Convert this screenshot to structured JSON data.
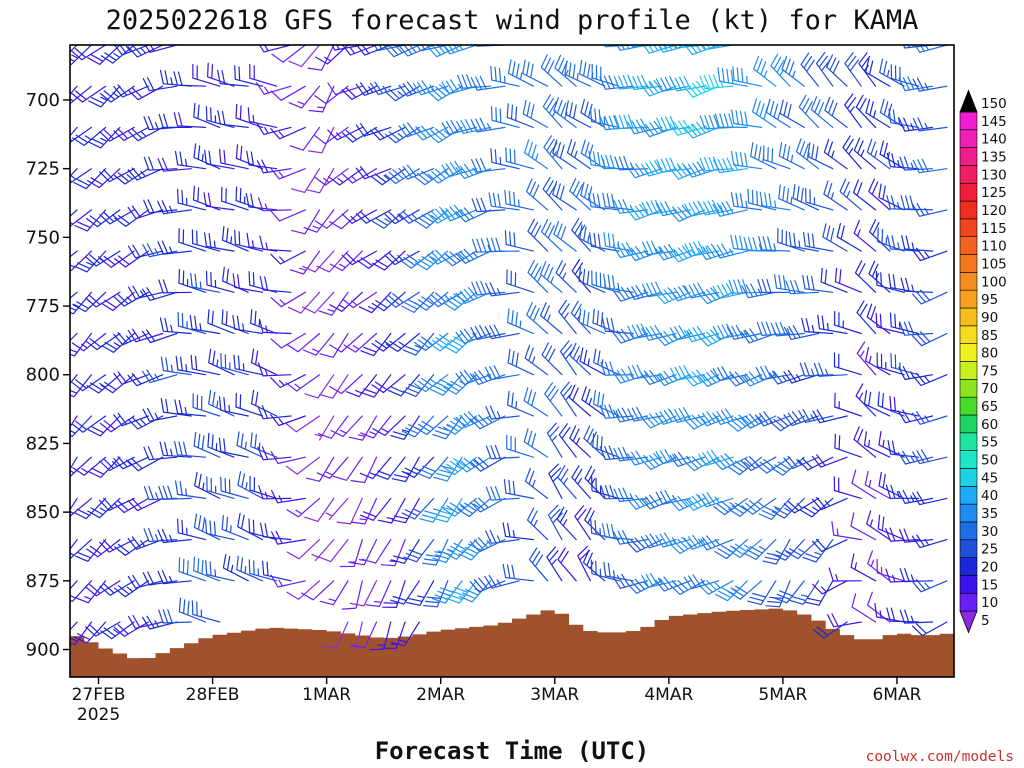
{
  "chart_data": {
    "type": "wind-barb-profile",
    "title": "2025022618 GFS forecast wind profile (kt) for KAMA",
    "xlabel": "Forecast Time (UTC)",
    "ylabel": "",
    "y_axis": {
      "reversed": true,
      "ylim": [
        910,
        680
      ],
      "ticks": [
        700,
        725,
        750,
        775,
        800,
        825,
        850,
        875,
        900
      ]
    },
    "x_axis": {
      "ticks": [
        {
          "label": "27FEB",
          "sublabel": "2025",
          "hour": 6
        },
        {
          "label": "28FEB",
          "hour": 30
        },
        {
          "label": "1MAR",
          "hour": 54
        },
        {
          "label": "2MAR",
          "hour": 78
        },
        {
          "label": "3MAR",
          "hour": 102
        },
        {
          "label": "4MAR",
          "hour": 126
        },
        {
          "label": "5MAR",
          "hour": 150
        },
        {
          "label": "6MAR",
          "hour": 174
        }
      ],
      "range_hours": [
        0,
        186
      ],
      "step_hours": 3
    },
    "pressure_levels": [
      680,
      695,
      710,
      725,
      740,
      755,
      770,
      785,
      800,
      815,
      830,
      845,
      860,
      875,
      890,
      905
    ],
    "wind_keyframes": [
      {
        "hour": 0,
        "dir_low": 210,
        "dir_high": 230,
        "spd_low": 18,
        "spd_high": 20
      },
      {
        "hour": 12,
        "dir_low": 235,
        "dir_high": 230,
        "spd_low": 20,
        "spd_high": 22
      },
      {
        "hour": 20,
        "dir_low": 250,
        "dir_high": 250,
        "spd_low": 22,
        "spd_high": 22
      },
      {
        "hour": 30,
        "dir_low": 290,
        "dir_high": 285,
        "spd_low": 30,
        "spd_high": 20
      },
      {
        "hour": 44,
        "dir_low": 295,
        "dir_high": 280,
        "spd_low": 25,
        "spd_high": 18
      },
      {
        "hour": 54,
        "dir_low": 230,
        "dir_high": 200,
        "spd_low": 8,
        "spd_high": 10
      },
      {
        "hour": 62,
        "dir_low": 190,
        "dir_high": 255,
        "spd_low": 10,
        "spd_high": 15
      },
      {
        "hour": 72,
        "dir_low": 200,
        "dir_high": 250,
        "spd_low": 15,
        "spd_high": 28
      },
      {
        "hour": 84,
        "dir_low": 205,
        "dir_high": 250,
        "spd_low": 42,
        "spd_high": 38
      },
      {
        "hour": 94,
        "dir_low": 245,
        "dir_high": 280,
        "spd_low": 28,
        "spd_high": 30
      },
      {
        "hour": 102,
        "dir_low": 330,
        "dir_high": 310,
        "spd_low": 25,
        "spd_high": 35
      },
      {
        "hour": 110,
        "dir_low": 330,
        "dir_high": 300,
        "spd_low": 18,
        "spd_high": 32
      },
      {
        "hour": 122,
        "dir_low": 250,
        "dir_high": 260,
        "spd_low": 30,
        "spd_high": 40
      },
      {
        "hour": 138,
        "dir_low": 245,
        "dir_high": 255,
        "spd_low": 35,
        "spd_high": 45
      },
      {
        "hour": 150,
        "dir_low": 190,
        "dir_high": 320,
        "spd_low": 30,
        "spd_high": 35
      },
      {
        "hour": 162,
        "dir_low": 200,
        "dir_high": 330,
        "spd_low": 20,
        "spd_high": 30
      },
      {
        "hour": 170,
        "dir_low": 310,
        "dir_high": 320,
        "spd_low": 10,
        "spd_high": 25
      },
      {
        "hour": 186,
        "dir_low": 240,
        "dir_high": 250,
        "spd_low": 25,
        "spd_high": 30
      }
    ],
    "surface_pressure": {
      "hours": [
        0,
        8,
        15,
        20,
        30,
        42,
        54,
        66,
        72,
        78,
        84,
        90,
        96,
        102,
        108,
        114,
        120,
        126,
        132,
        138,
        150,
        156,
        162,
        168,
        174,
        180,
        186
      ],
      "values": [
        894,
        900,
        904,
        901,
        895,
        892,
        893,
        896,
        895,
        893,
        892,
        891,
        888,
        885,
        893,
        894,
        893,
        888,
        887,
        886,
        885,
        888,
        894,
        897,
        894,
        895,
        894
      ]
    },
    "terrain_color": "#a0522d",
    "colorbar": {
      "levels": [
        5,
        10,
        15,
        20,
        25,
        30,
        35,
        40,
        45,
        50,
        55,
        60,
        65,
        70,
        75,
        80,
        85,
        90,
        95,
        100,
        105,
        110,
        115,
        120,
        125,
        130,
        135,
        140,
        145,
        150
      ],
      "colors": [
        "#8a2be2",
        "#6a1df5",
        "#3a14e8",
        "#1a28d8",
        "#1e50dc",
        "#1e6ee6",
        "#1e8cf0",
        "#1eaaf5",
        "#1ed2e6",
        "#1ee6c8",
        "#1ee6a0",
        "#1ed264",
        "#46dc28",
        "#8ce61e",
        "#c8f01e",
        "#f0f01e",
        "#f5dc1e",
        "#f5be1e",
        "#f5a01e",
        "#f58c1e",
        "#f5781e",
        "#f5641e",
        "#f0461e",
        "#f02d1e",
        "#f01e3c",
        "#f01e64",
        "#f01e8c",
        "#f01eb4",
        "#f01ed2",
        "#e61eeb"
      ]
    }
  },
  "watermark": "coolwx.com/models"
}
